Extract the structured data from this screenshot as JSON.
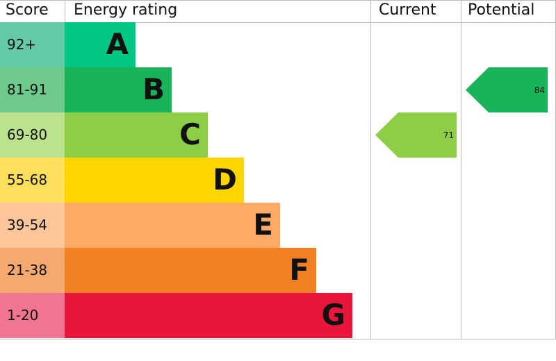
{
  "header": {
    "score": "Score",
    "rating": "Energy rating",
    "current": "Current",
    "potential": "Potential"
  },
  "bands": [
    {
      "score": "92+",
      "letter": "A",
      "color": "#00c781",
      "score_color": "#64caa5"
    },
    {
      "score": "81-91",
      "letter": "B",
      "color": "#19b459",
      "score_color": "#6dc98c"
    },
    {
      "score": "69-80",
      "letter": "C",
      "color": "#8dce46",
      "score_color": "#bce28e"
    },
    {
      "score": "55-68",
      "letter": "D",
      "color": "#ffd500",
      "score_color": "#ffe05c"
    },
    {
      "score": "39-54",
      "letter": "E",
      "color": "#fcaa65",
      "score_color": "#fdc69b"
    },
    {
      "score": "21-38",
      "letter": "F",
      "color": "#ef8023",
      "score_color": "#f4a96f"
    },
    {
      "score": "1-20",
      "letter": "G",
      "color": "#e9153b",
      "score_color": "#f07590"
    }
  ],
  "current": 71,
  "potential": 84
}
